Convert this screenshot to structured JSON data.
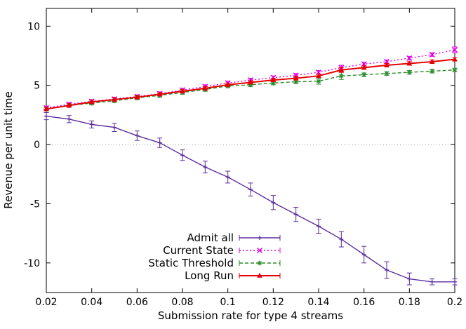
{
  "chart_data": {
    "type": "line",
    "title": "",
    "xlabel": "Submission rate for type 4 streams",
    "ylabel": "Revenue per unit time",
    "xlim": [
      0.02,
      0.2
    ],
    "ylim": [
      -12.5,
      11.5
    ],
    "grid": "zero-line-only",
    "legend_position": "inside-bottom-center",
    "xticks": [
      {
        "v": 0.02,
        "label": "0.02"
      },
      {
        "v": 0.04,
        "label": "0.04"
      },
      {
        "v": 0.06,
        "label": "0.06"
      },
      {
        "v": 0.08,
        "label": "0.08"
      },
      {
        "v": 0.1,
        "label": "0.1"
      },
      {
        "v": 0.12,
        "label": "0.12"
      },
      {
        "v": 0.14,
        "label": "0.14"
      },
      {
        "v": 0.16,
        "label": "0.16"
      },
      {
        "v": 0.18,
        "label": "0.18"
      },
      {
        "v": 0.2,
        "label": "0.2"
      }
    ],
    "yticks": [
      {
        "v": -10,
        "label": "-10"
      },
      {
        "v": -5,
        "label": "-5"
      },
      {
        "v": 0,
        "label": "0"
      },
      {
        "v": 5,
        "label": "5"
      },
      {
        "v": 10,
        "label": "10"
      }
    ],
    "x": [
      0.02,
      0.03,
      0.04,
      0.05,
      0.06,
      0.07,
      0.08,
      0.09,
      0.1,
      0.11,
      0.12,
      0.13,
      0.14,
      0.15,
      0.16,
      0.17,
      0.18,
      0.19,
      0.2
    ],
    "series": [
      {
        "name": "Admit all",
        "color": "#5b2d9e",
        "style": "solid",
        "marker": "plus",
        "values": [
          2.4,
          2.15,
          1.7,
          1.45,
          0.75,
          0.15,
          -0.9,
          -1.9,
          -2.75,
          -3.8,
          -4.9,
          -5.9,
          -6.9,
          -8.0,
          -9.3,
          -10.6,
          -11.35,
          -11.6,
          -11.6
        ],
        "errors": [
          0.3,
          0.3,
          0.3,
          0.35,
          0.4,
          0.4,
          0.45,
          0.5,
          0.5,
          0.55,
          0.6,
          0.6,
          0.6,
          0.65,
          0.7,
          0.7,
          0.5,
          0.25,
          0.25
        ]
      },
      {
        "name": "Current State",
        "color": "#e400e4",
        "style": "dotted",
        "marker": "cross",
        "values": [
          3.1,
          3.4,
          3.65,
          3.85,
          4.05,
          4.3,
          4.6,
          4.9,
          5.2,
          5.45,
          5.65,
          5.85,
          6.1,
          6.5,
          6.8,
          7.0,
          7.3,
          7.6,
          8.0
        ],
        "errors": [
          0.15,
          0.15,
          0.15,
          0.15,
          0.15,
          0.15,
          0.15,
          0.15,
          0.15,
          0.15,
          0.15,
          0.15,
          0.15,
          0.2,
          0.15,
          0.15,
          0.15,
          0.15,
          0.25
        ]
      },
      {
        "name": "Static Threshold",
        "color": "#2a8b2a",
        "style": "dashed",
        "marker": "asterisk",
        "values": [
          3.0,
          3.3,
          3.5,
          3.7,
          3.95,
          4.15,
          4.4,
          4.65,
          4.95,
          5.05,
          5.2,
          5.3,
          5.35,
          5.8,
          5.9,
          6.0,
          6.1,
          6.2,
          6.3
        ],
        "errors": [
          0.15,
          0.15,
          0.15,
          0.15,
          0.15,
          0.15,
          0.15,
          0.15,
          0.15,
          0.15,
          0.15,
          0.15,
          0.25,
          0.3,
          0.15,
          0.15,
          0.15,
          0.15,
          0.15
        ]
      },
      {
        "name": "Long Run",
        "color": "#e60000",
        "style": "solid",
        "marker": "triangle-filled",
        "values": [
          3.0,
          3.3,
          3.6,
          3.8,
          4.0,
          4.25,
          4.5,
          4.75,
          5.05,
          5.25,
          5.45,
          5.6,
          5.8,
          6.3,
          6.5,
          6.7,
          6.85,
          7.0,
          7.2
        ],
        "errors": [
          0.15,
          0.15,
          0.15,
          0.15,
          0.15,
          0.15,
          0.15,
          0.15,
          0.15,
          0.15,
          0.15,
          0.15,
          0.15,
          0.2,
          0.15,
          0.15,
          0.15,
          0.15,
          0.15
        ]
      }
    ]
  }
}
